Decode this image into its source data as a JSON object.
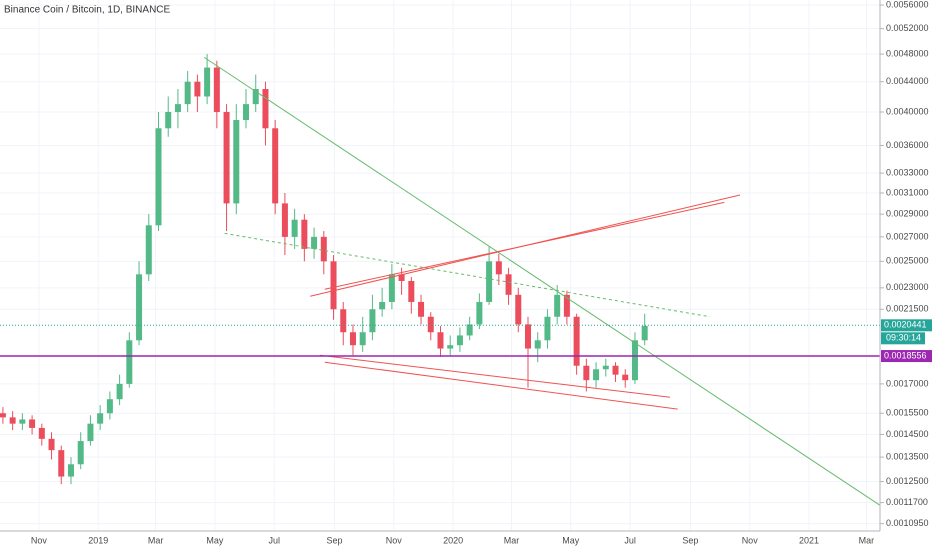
{
  "chart_data": {
    "type": "candlestick",
    "title": "Binance Coin / Bitcoin, 1D, BINANCE",
    "log_scale": true,
    "grid": true,
    "up_color": "#53b987",
    "down_color": "#eb4d5c",
    "xlim": [
      "2018-09-22",
      "2021-03-15"
    ],
    "ylim": [
      0.00107,
      0.00569
    ],
    "xticks": [
      {
        "value": "2018-11-01",
        "label": "Nov"
      },
      {
        "value": "2019-01-01",
        "label": "2019"
      },
      {
        "value": "2019-03-01",
        "label": "Mar"
      },
      {
        "value": "2019-05-01",
        "label": "May"
      },
      {
        "value": "2019-07-01",
        "label": "Jul"
      },
      {
        "value": "2019-09-01",
        "label": "Sep"
      },
      {
        "value": "2019-11-01",
        "label": "Nov"
      },
      {
        "value": "2020-01-01",
        "label": "2020"
      },
      {
        "value": "2020-03-01",
        "label": "Mar"
      },
      {
        "value": "2020-05-01",
        "label": "May"
      },
      {
        "value": "2020-07-01",
        "label": "Jul"
      },
      {
        "value": "2020-09-01",
        "label": "Sep"
      },
      {
        "value": "2020-11-01",
        "label": "Nov"
      },
      {
        "value": "2021-01-01",
        "label": "2021"
      },
      {
        "value": "2021-03-01",
        "label": "Mar"
      }
    ],
    "yticks": [
      {
        "value": 0.0056,
        "label": "0.0056000"
      },
      {
        "value": 0.0052,
        "label": "0.0052000"
      },
      {
        "value": 0.0048,
        "label": "0.0048000"
      },
      {
        "value": 0.0044,
        "label": "0.0044000"
      },
      {
        "value": 0.004,
        "label": "0.0040000"
      },
      {
        "value": 0.0036,
        "label": "0.0036000"
      },
      {
        "value": 0.0033,
        "label": "0.0033000"
      },
      {
        "value": 0.0031,
        "label": "0.0031000"
      },
      {
        "value": 0.0029,
        "label": "0.0029000"
      },
      {
        "value": 0.0027,
        "label": "0.0027000"
      },
      {
        "value": 0.0025,
        "label": "0.0025000"
      },
      {
        "value": 0.0023,
        "label": "0.0023000"
      },
      {
        "value": 0.00215,
        "label": "0.0021500"
      },
      {
        "value": 0.0017,
        "label": "0.0017000"
      },
      {
        "value": 0.00155,
        "label": "0.0015500"
      },
      {
        "value": 0.00145,
        "label": "0.0014500"
      },
      {
        "value": 0.00135,
        "label": "0.0013500"
      },
      {
        "value": 0.00125,
        "label": "0.0012500"
      },
      {
        "value": 0.00117,
        "label": "0.0011700"
      },
      {
        "value": 0.001095,
        "label": "0.0010950"
      }
    ],
    "x": [
      "2018-09-25",
      "2018-10-05",
      "2018-10-15",
      "2018-10-25",
      "2018-11-04",
      "2018-11-14",
      "2018-11-24",
      "2018-12-04",
      "2018-12-14",
      "2018-12-24",
      "2019-01-03",
      "2019-01-13",
      "2019-01-23",
      "2019-02-02",
      "2019-02-12",
      "2019-02-22",
      "2019-03-04",
      "2019-03-14",
      "2019-03-24",
      "2019-04-03",
      "2019-04-13",
      "2019-04-23",
      "2019-05-03",
      "2019-05-13",
      "2019-05-23",
      "2019-06-02",
      "2019-06-12",
      "2019-06-22",
      "2019-07-02",
      "2019-07-12",
      "2019-07-22",
      "2019-08-01",
      "2019-08-11",
      "2019-08-21",
      "2019-08-31",
      "2019-09-10",
      "2019-09-20",
      "2019-09-30",
      "2019-10-10",
      "2019-10-20",
      "2019-10-30",
      "2019-11-09",
      "2019-11-19",
      "2019-11-29",
      "2019-12-09",
      "2019-12-19",
      "2019-12-29",
      "2020-01-08",
      "2020-01-18",
      "2020-01-28",
      "2020-02-07",
      "2020-02-17",
      "2020-02-27",
      "2020-03-08",
      "2020-03-18",
      "2020-03-28",
      "2020-04-07",
      "2020-04-17",
      "2020-04-27",
      "2020-05-07",
      "2020-05-17",
      "2020-05-27",
      "2020-06-06",
      "2020-06-16",
      "2020-06-26",
      "2020-07-06",
      "2020-07-16"
    ],
    "open": [
      0.00155,
      0.00153,
      0.0015,
      0.00152,
      0.00148,
      0.00143,
      0.00138,
      0.00127,
      0.00132,
      0.00142,
      0.0015,
      0.00155,
      0.00162,
      0.0017,
      0.00195,
      0.0024,
      0.0028,
      0.0038,
      0.004,
      0.0041,
      0.0044,
      0.0042,
      0.0046,
      0.004,
      0.003,
      0.0039,
      0.0041,
      0.0043,
      0.0038,
      0.003,
      0.0027,
      0.00285,
      0.0026,
      0.0027,
      0.0025,
      0.00215,
      0.002,
      0.00192,
      0.002,
      0.00215,
      0.0022,
      0.0024,
      0.00235,
      0.0022,
      0.0021,
      0.002,
      0.0019,
      0.00192,
      0.00198,
      0.00205,
      0.0022,
      0.0025,
      0.0024,
      0.00225,
      0.00205,
      0.0019,
      0.00195,
      0.0021,
      0.00225,
      0.0021,
      0.0018,
      0.00172,
      0.00178,
      0.0018,
      0.00175,
      0.00172,
      0.00195
    ],
    "high": [
      0.00158,
      0.00156,
      0.00155,
      0.00154,
      0.0015,
      0.00146,
      0.0014,
      0.00135,
      0.00146,
      0.00154,
      0.00159,
      0.00166,
      0.00175,
      0.002,
      0.0025,
      0.0029,
      0.004,
      0.0042,
      0.0043,
      0.00455,
      0.0045,
      0.0048,
      0.0047,
      0.0041,
      0.0041,
      0.0043,
      0.0045,
      0.0044,
      0.0039,
      0.0031,
      0.00295,
      0.0029,
      0.00278,
      0.00275,
      0.00255,
      0.0022,
      0.00205,
      0.0021,
      0.00225,
      0.0023,
      0.00248,
      0.00245,
      0.00238,
      0.00225,
      0.00213,
      0.00204,
      0.00198,
      0.00203,
      0.0021,
      0.00226,
      0.00262,
      0.00256,
      0.00245,
      0.0023,
      0.0021,
      0.002,
      0.00215,
      0.00232,
      0.00228,
      0.00212,
      0.00184,
      0.00182,
      0.00184,
      0.00182,
      0.00178,
      0.002,
      0.00212
    ],
    "low": [
      0.0015,
      0.00147,
      0.00147,
      0.00145,
      0.0014,
      0.00134,
      0.00124,
      0.00124,
      0.0013,
      0.0014,
      0.00147,
      0.00152,
      0.00159,
      0.00168,
      0.00192,
      0.00235,
      0.00275,
      0.0037,
      0.0038,
      0.004,
      0.004,
      0.0041,
      0.0038,
      0.00275,
      0.0029,
      0.0038,
      0.004,
      0.0036,
      0.0029,
      0.00255,
      0.0026,
      0.0025,
      0.00252,
      0.0024,
      0.00208,
      0.00192,
      0.00186,
      0.00188,
      0.00195,
      0.0021,
      0.00215,
      0.00225,
      0.00212,
      0.00205,
      0.00195,
      0.00185,
      0.00186,
      0.00188,
      0.00195,
      0.00202,
      0.00218,
      0.00232,
      0.00218,
      0.002,
      0.00168,
      0.00182,
      0.0019,
      0.00205,
      0.00205,
      0.00175,
      0.00166,
      0.00168,
      0.00174,
      0.00171,
      0.00168,
      0.0017,
      0.00192
    ],
    "close": [
      0.00153,
      0.0015,
      0.00152,
      0.00148,
      0.00143,
      0.00138,
      0.00127,
      0.00132,
      0.00142,
      0.0015,
      0.00155,
      0.00162,
      0.0017,
      0.00195,
      0.0024,
      0.0028,
      0.0038,
      0.004,
      0.0041,
      0.0044,
      0.0042,
      0.0046,
      0.004,
      0.003,
      0.0039,
      0.0041,
      0.0043,
      0.0038,
      0.003,
      0.0027,
      0.00285,
      0.0026,
      0.0027,
      0.0025,
      0.00215,
      0.002,
      0.00192,
      0.002,
      0.00215,
      0.0022,
      0.0024,
      0.00235,
      0.0022,
      0.0021,
      0.002,
      0.0019,
      0.00192,
      0.00198,
      0.00205,
      0.0022,
      0.0025,
      0.0024,
      0.00225,
      0.00205,
      0.0019,
      0.00195,
      0.0021,
      0.00225,
      0.0021,
      0.0018,
      0.00172,
      0.00178,
      0.0018,
      0.00175,
      0.00172,
      0.00195,
      0.00204
    ],
    "drawings": [
      {
        "from": [
          "2019-04-20",
          0.00475
        ],
        "to": [
          "2021-03-15",
          0.00116
        ],
        "color": "#66bb6a",
        "dashed": false
      },
      {
        "from": [
          "2019-05-11",
          0.00273
        ],
        "to": [
          "2020-09-21",
          0.0021
        ],
        "color": "#66bb6a",
        "dashed": true
      },
      {
        "from": [
          "2019-08-07",
          0.00224
        ],
        "to": [
          "2020-10-22",
          0.00308
        ],
        "color": "#ef5350",
        "dashed": false
      },
      {
        "from": [
          "2019-08-22",
          0.00229
        ],
        "to": [
          "2020-10-06",
          0.00301
        ],
        "color": "#ef5350",
        "dashed": false
      },
      {
        "from": [
          "2019-08-17",
          0.00186
        ],
        "to": [
          "2020-08-11",
          0.00163
        ],
        "color": "#ef5350",
        "dashed": false
      },
      {
        "from": [
          "2019-08-22",
          0.00182
        ],
        "to": [
          "2020-08-19",
          0.00157
        ],
        "color": "#ef5350",
        "dashed": false
      }
    ],
    "price_lines": [
      {
        "value": 0.0020441,
        "color": "#26a69a",
        "dashed": true,
        "countdown": "09:30:14"
      },
      {
        "value": 0.0018556,
        "color": "#9c27b0",
        "dashed": false
      }
    ]
  }
}
